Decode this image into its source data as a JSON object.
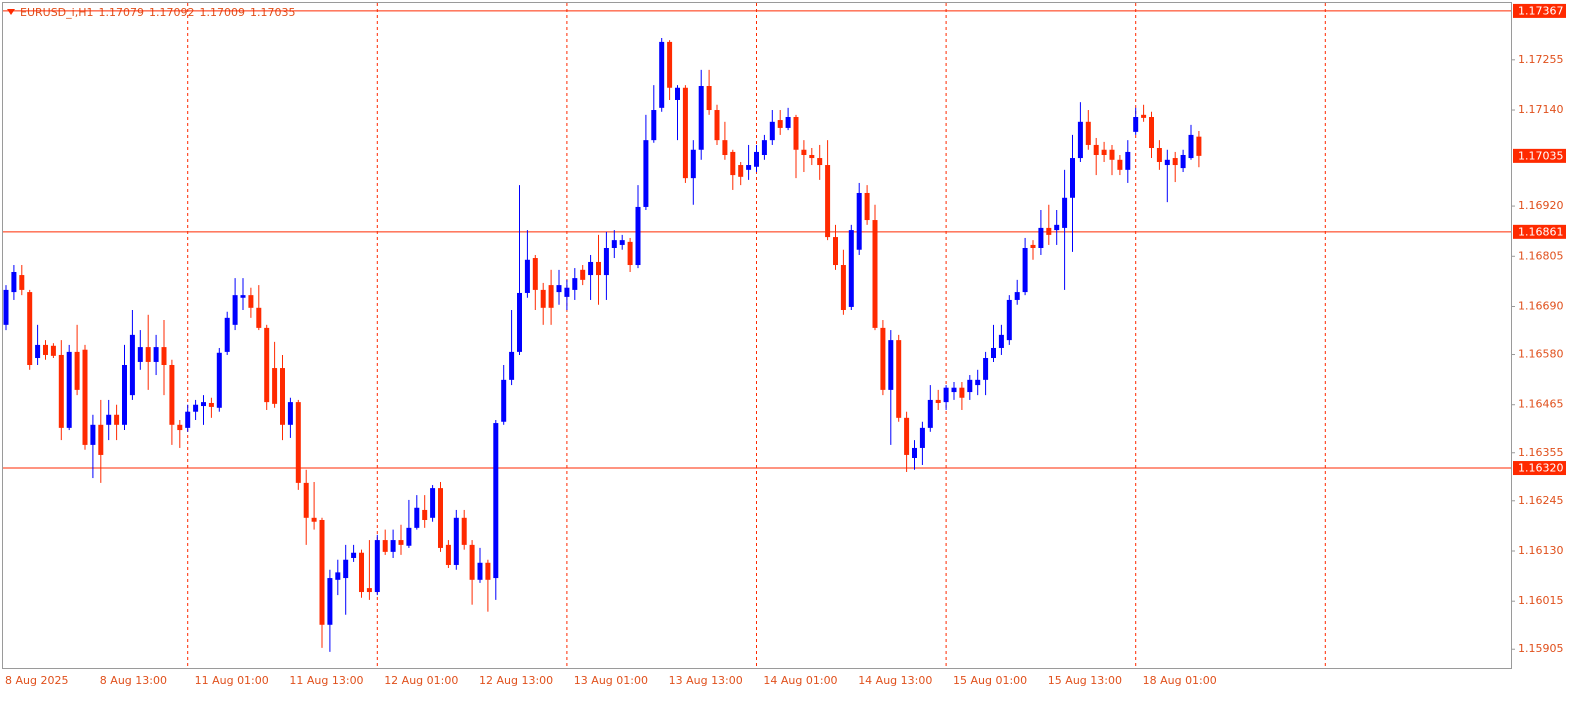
{
  "chart_data": {
    "type": "candlestick",
    "symbol": "EURUSD_i,H1",
    "categories": [
      "8 Aug 2025",
      null,
      null,
      null,
      null,
      null,
      null,
      null,
      null,
      null,
      null,
      null,
      "8 Aug 13:00",
      null,
      null,
      null,
      null,
      null,
      null,
      null,
      null,
      null,
      null,
      null,
      "11 Aug 01:00",
      null,
      null,
      null,
      null,
      null,
      null,
      null,
      null,
      null,
      null,
      null,
      "11 Aug 13:00",
      null,
      null,
      null,
      null,
      null,
      null,
      null,
      null,
      null,
      null,
      null,
      "12 Aug 01:00",
      null,
      null,
      null,
      null,
      null,
      null,
      null,
      null,
      null,
      null,
      null,
      "12 Aug 13:00",
      null,
      null,
      null,
      null,
      null,
      null,
      null,
      null,
      null,
      null,
      null,
      "13 Aug 01:00",
      null,
      null,
      null,
      null,
      null,
      null,
      null,
      null,
      null,
      null,
      null,
      "13 Aug 13:00",
      null,
      null,
      null,
      null,
      null,
      null,
      null,
      null,
      null,
      null,
      null,
      "14 Aug 01:00",
      null,
      null,
      null,
      null,
      null,
      null,
      null,
      null,
      null,
      null,
      null,
      "14 Aug 13:00",
      null,
      null,
      null,
      null,
      null,
      null,
      null,
      null,
      null,
      null,
      null,
      "15 Aug 01:00",
      null,
      null,
      null,
      null,
      null,
      null,
      null,
      null,
      null,
      null,
      null,
      "15 Aug 13:00",
      null,
      null,
      null,
      null,
      null,
      null,
      null,
      null,
      null,
      null,
      null,
      "18 Aug 01:00",
      null,
      null,
      null,
      null,
      null,
      null,
      null
    ],
    "open": [
      1.16648,
      1.16723,
      1.16762,
      1.16723,
      1.16572,
      1.16602,
      1.166,
      1.16579,
      1.16412,
      1.16586,
      1.16591,
      1.16373,
      1.16419,
      1.16419,
      1.16442,
      1.16419,
      1.16487,
      1.16563,
      1.16597,
      1.16563,
      1.16597,
      1.16556,
      1.16419,
      1.16412,
      1.16449,
      1.16462,
      1.16469,
      1.16458,
      1.16586,
      1.16648,
      1.1671,
      1.16716,
      1.16687,
      1.16641,
      1.16549,
      1.16549,
      1.16419,
      1.16471,
      1.16286,
      1.16206,
      1.16201,
      1.15961,
      1.16064,
      1.16068,
      1.16114,
      1.16126,
      1.16045,
      1.16036,
      1.16155,
      1.16128,
      1.16155,
      1.16142,
      1.16183,
      1.16224,
      1.16206,
      1.16274,
      1.16144,
      1.16098,
      1.16206,
      1.16144,
      1.16064,
      1.16103,
      1.16068,
      1.16426,
      1.16522,
      1.16586,
      1.16721,
      1.16801,
      1.16728,
      1.16739,
      1.16723,
      1.16712,
      1.16728,
      1.16774,
      1.16762,
      1.16792,
      1.16762,
      1.16824,
      1.16831,
      1.16838,
      1.16785,
      1.16918,
      1.17071,
      1.17145,
      1.17296,
      1.17163,
      1.17191,
      1.16984,
      1.17049,
      1.17195,
      1.1714,
      1.17071,
      1.17044,
      1.17014,
      1.17003,
      1.1701,
      1.17037,
      1.17071,
      1.17117,
      1.17099,
      1.17124,
      1.17049,
      1.17037,
      1.1703,
      1.17014,
      1.16849,
      1.16785,
      1.16689,
      1.1682,
      1.1695,
      1.16888,
      1.16641,
      1.16499,
      1.16613,
      1.16435,
      1.16343,
      1.16366,
      1.16412,
      1.16476,
      1.16471,
      1.16494,
      1.16504,
      1.16494,
      1.1651,
      1.16522,
      1.16572,
      1.16595,
      1.16613,
      1.16705,
      1.16723,
      1.16831,
      1.16824,
      1.1687,
      1.16865,
      1.1687,
      1.16939,
      1.1703,
      1.17113,
      1.1706,
      1.17049,
      1.17049,
      1.17026,
      1.17003,
      1.1709,
      1.17129,
      1.17124,
      1.17053,
      1.17014,
      1.1703,
      1.17007,
      1.1703,
      1.17079
    ],
    "high": [
      1.16739,
      1.16785,
      1.16785,
      1.16728,
      1.16648,
      1.16613,
      1.16606,
      1.16613,
      1.16602,
      1.16648,
      1.16602,
      1.16442,
      1.16476,
      1.16476,
      1.16465,
      1.16602,
      1.16682,
      1.16636,
      1.16671,
      1.16625,
      1.16659,
      1.16568,
      1.1643,
      1.16465,
      1.16476,
      1.16487,
      1.16481,
      1.16595,
      1.16678,
      1.16755,
      1.16755,
      1.16733,
      1.16739,
      1.16648,
      1.16609,
      1.16579,
      1.16481,
      1.16476,
      1.16316,
      1.16288,
      1.16206,
      1.16087,
      1.1611,
      1.16144,
      1.16144,
      1.16133,
      1.16155,
      1.16167,
      1.16179,
      1.16179,
      1.1619,
      1.16247,
      1.16258,
      1.16258,
      1.16281,
      1.16288,
      1.16155,
      1.16224,
      1.16224,
      1.16155,
      1.16137,
      1.1611,
      1.1643,
      1.16556,
      1.16682,
      1.16968,
      1.16865,
      1.16808,
      1.16744,
      1.16774,
      1.16774,
      1.16751,
      1.16778,
      1.16785,
      1.16808,
      1.16854,
      1.16861,
      1.16865,
      1.16854,
      1.16847,
      1.16968,
      1.17129,
      1.17197,
      1.17305,
      1.173,
      1.17197,
      1.17197,
      1.17071,
      1.17232,
      1.17232,
      1.17152,
      1.17113,
      1.17049,
      1.17021,
      1.1706,
      1.1706,
      1.17083,
      1.1714,
      1.1714,
      1.17145,
      1.17129,
      1.17071,
      1.17053,
      1.1706,
      1.17071,
      1.16877,
      1.1682,
      1.16877,
      1.16973,
      1.16968,
      1.16923,
      1.16659,
      1.16636,
      1.16625,
      1.16449,
      1.16384,
      1.16426,
      1.1651,
      1.16499,
      1.1651,
      1.16517,
      1.16517,
      1.16533,
      1.16545,
      1.16586,
      1.16648,
      1.16648,
      1.16716,
      1.16751,
      1.16847,
      1.16842,
      1.16911,
      1.16923,
      1.16911,
      1.17003,
      1.17083,
      1.17158,
      1.1714,
      1.17076,
      1.17067,
      1.1706,
      1.17037,
      1.17071,
      1.17145,
      1.17152,
      1.17136,
      1.17071,
      1.17049,
      1.17044,
      1.17049,
      1.17106,
      1.17092
    ],
    "low": [
      1.16636,
      1.16705,
      1.16716,
      1.16545,
      1.16556,
      1.16568,
      1.16572,
      1.16384,
      1.16407,
      1.16487,
      1.16362,
      1.16297,
      1.16286,
      1.16384,
      1.16384,
      1.16407,
      1.16476,
      1.16545,
      1.16499,
      1.16533,
      1.16487,
      1.16373,
      1.16366,
      1.16403,
      1.1643,
      1.16419,
      1.16435,
      1.16449,
      1.16579,
      1.16636,
      1.16682,
      1.16664,
      1.16636,
      1.16453,
      1.16458,
      1.16384,
      1.16389,
      1.1627,
      1.16144,
      1.16179,
      1.15908,
      1.15899,
      1.16029,
      1.15984,
      1.16105,
      1.16023,
      1.16018,
      1.16029,
      1.16121,
      1.16114,
      1.16121,
      1.16137,
      1.16179,
      1.16183,
      1.16197,
      1.16128,
      1.16091,
      1.16087,
      1.16133,
      1.16007,
      1.16057,
      1.15991,
      1.16018,
      1.16419,
      1.1651,
      1.16579,
      1.1671,
      1.16682,
      1.16648,
      1.16648,
      1.16694,
      1.16682,
      1.16705,
      1.16739,
      1.16705,
      1.16694,
      1.16705,
      1.16801,
      1.1682,
      1.16769,
      1.16778,
      1.16911,
      1.17065,
      1.17136,
      1.17163,
      1.17071,
      1.16973,
      1.16923,
      1.17026,
      1.17129,
      1.1706,
      1.17026,
      1.16957,
      1.16968,
      1.1698,
      1.16998,
      1.17026,
      1.1706,
      1.17083,
      1.17094,
      1.16984,
      1.16998,
      1.17014,
      1.1698,
      1.16842,
      1.16774,
      1.16671,
      1.16682,
      1.16808,
      1.16877,
      1.16636,
      1.16487,
      1.16373,
      1.16426,
      1.16311,
      1.16316,
      1.16327,
      1.16403,
      1.16453,
      1.16453,
      1.16476,
      1.16453,
      1.16476,
      1.16487,
      1.16487,
      1.16563,
      1.16579,
      1.16602,
      1.16694,
      1.16716,
      1.16797,
      1.16808,
      1.16831,
      1.16831,
      1.16728,
      1.16815,
      1.17021,
      1.17049,
      1.16991,
      1.17021,
      1.16991,
      1.16991,
      1.16973,
      1.17083,
      1.17113,
      1.1703,
      1.17003,
      1.16929,
      1.16975,
      1.16998,
      1.17026,
      1.17009
    ],
    "close": [
      1.16728,
      1.16769,
      1.16728,
      1.16556,
      1.16602,
      1.16579,
      1.16577,
      1.16412,
      1.16586,
      1.16499,
      1.16373,
      1.16419,
      1.1635,
      1.16442,
      1.16419,
      1.16556,
      1.16625,
      1.16597,
      1.16563,
      1.16597,
      1.16556,
      1.16419,
      1.16407,
      1.16449,
      1.16465,
      1.16471,
      1.1646,
      1.16584,
      1.16664,
      1.16716,
      1.16716,
      1.16687,
      1.16641,
      1.16471,
      1.16467,
      1.16419,
      1.16471,
      1.16286,
      1.16206,
      1.16197,
      1.15961,
      1.16068,
      1.16081,
      1.1611,
      1.16126,
      1.16036,
      1.16036,
      1.16155,
      1.16128,
      1.16155,
      1.16144,
      1.16183,
      1.16229,
      1.16201,
      1.16274,
      1.16137,
      1.16098,
      1.16206,
      1.16144,
      1.16064,
      1.16103,
      1.16064,
      1.16423,
      1.16522,
      1.16586,
      1.16721,
      1.16797,
      1.16728,
      1.16687,
      1.16687,
      1.16739,
      1.16733,
      1.16755,
      1.16751,
      1.16792,
      1.16762,
      1.16824,
      1.16842,
      1.16842,
      1.16785,
      1.16918,
      1.17071,
      1.1714,
      1.17296,
      1.17191,
      1.17191,
      1.16984,
      1.17049,
      1.17195,
      1.1714,
      1.17071,
      1.17037,
      1.16991,
      1.16987,
      1.17014,
      1.17044,
      1.17071,
      1.17113,
      1.17099,
      1.17124,
      1.17049,
      1.17037,
      1.1703,
      1.17014,
      1.16849,
      1.16785,
      1.16682,
      1.16865,
      1.1695,
      1.16888,
      1.16641,
      1.16499,
      1.16613,
      1.16435,
      1.1635,
      1.16366,
      1.16412,
      1.16476,
      1.16469,
      1.16504,
      1.16504,
      1.16481,
      1.16522,
      1.16522,
      1.16572,
      1.16595,
      1.16625,
      1.16705,
      1.16723,
      1.16824,
      1.16824,
      1.1687,
      1.16854,
      1.16877,
      1.16939,
      1.1703,
      1.17113,
      1.1706,
      1.17037,
      1.17037,
      1.17026,
      1.17003,
      1.17044,
      1.17124,
      1.17122,
      1.17053,
      1.17021,
      1.17026,
      1.17014,
      1.17037,
      1.17083,
      1.17035
    ],
    "up_color": "#0000ff",
    "down_color": "#ff2a00",
    "line_color": "#ff2a00",
    "ylim": [
      1.15862,
      1.17392
    ],
    "yticks": [
      {
        "value": 1.17255,
        "label": "1.17255"
      },
      {
        "value": 1.1714,
        "label": "1.17140"
      },
      {
        "value": 1.1692,
        "label": "1.16920"
      },
      1.16805,
      {
        "value": 1.1669,
        "label": "1.16690"
      },
      {
        "value": 1.1658,
        "label": "1.16580"
      },
      1.16465,
      1.16355,
      1.16245,
      {
        "value": 1.1613,
        "label": "1.16130"
      },
      1.16015,
      1.15905
    ],
    "hlines": [
      1.17367,
      1.16861,
      {
        "value": 1.1632,
        "label": "1.16320"
      }
    ],
    "grid": true
  }
}
